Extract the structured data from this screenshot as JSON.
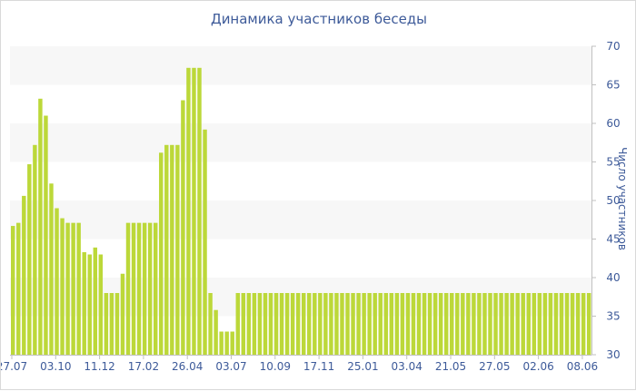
{
  "chart_data": {
    "type": "bar",
    "title": "Динамика участников беседы",
    "xlabel": "",
    "ylabel": "Число участников",
    "ylim": [
      30,
      70
    ],
    "yticks": [
      30,
      35,
      40,
      45,
      50,
      55,
      60,
      65,
      70
    ],
    "grid": "alternating horizontal bands",
    "bar_color": "#bcd839",
    "band_color": "#f7f7f7",
    "text_color": "#3d5a99",
    "x_tick_labels": [
      {
        "index": 0,
        "label": "27.07"
      },
      {
        "index": 8,
        "label": "03.10"
      },
      {
        "index": 16,
        "label": "11.12"
      },
      {
        "index": 24,
        "label": "17.02"
      },
      {
        "index": 32,
        "label": "26.04"
      },
      {
        "index": 40,
        "label": "03.07"
      },
      {
        "index": 48,
        "label": "10.09"
      },
      {
        "index": 56,
        "label": "17.11"
      },
      {
        "index": 64,
        "label": "25.01"
      },
      {
        "index": 72,
        "label": "03.04"
      },
      {
        "index": 80,
        "label": "21.05"
      },
      {
        "index": 88,
        "label": "27.05"
      },
      {
        "index": 96,
        "label": "02.06"
      },
      {
        "index": 104,
        "label": "08.06"
      }
    ],
    "values": [
      46.7,
      47.1,
      50.6,
      54.7,
      57.2,
      63.2,
      61.0,
      52.2,
      49.0,
      47.7,
      47.1,
      47.1,
      47.1,
      43.3,
      43.0,
      43.9,
      43.0,
      38.0,
      38.0,
      38.0,
      40.5,
      47.1,
      47.1,
      47.1,
      47.1,
      47.1,
      47.1,
      56.2,
      57.2,
      57.2,
      57.2,
      63.0,
      67.2,
      67.2,
      67.2,
      59.2,
      38.0,
      35.8,
      33.0,
      33.0,
      33.0,
      38.0,
      38.0,
      38.0,
      38.0,
      38.0,
      38.0,
      38.0,
      38.0,
      38.0,
      38.0,
      38.0,
      38.0,
      38.0,
      38.0,
      38.0,
      38.0,
      38.0,
      38.0,
      38.0,
      38.0,
      38.0,
      38.0,
      38.0,
      38.0,
      38.0,
      38.0,
      38.0,
      38.0,
      38.0,
      38.0,
      38.0,
      38.0,
      38.0,
      38.0,
      38.0,
      38.0,
      38.0,
      38.0,
      38.0,
      38.0,
      38.0,
      38.0,
      38.0,
      38.0,
      38.0,
      38.0,
      38.0,
      38.0,
      38.0,
      38.0,
      38.0,
      38.0,
      38.0,
      38.0,
      38.0,
      38.0,
      38.0,
      38.0,
      38.0,
      38.0,
      38.0,
      38.0,
      38.0,
      38.0,
      38.0
    ]
  }
}
